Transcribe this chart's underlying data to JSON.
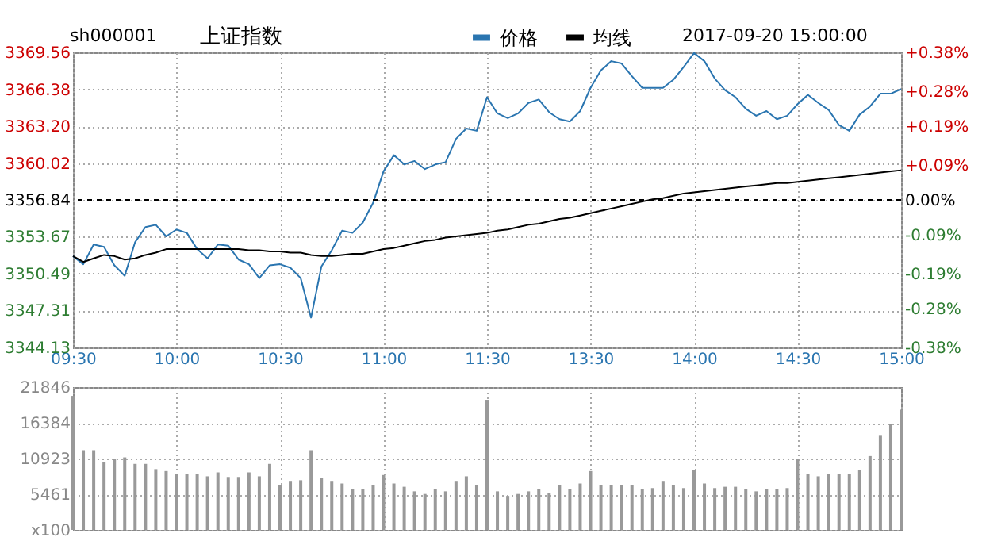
{
  "chart_data": [
    {
      "type": "line",
      "title": "上证指数",
      "annotations": [
        "sh000001",
        "2017-09-20 15:00:00"
      ],
      "legend": "top",
      "grid": true,
      "marker": "none",
      "categories": [
        "09:30",
        null,
        null,
        null,
        null,
        null,
        null,
        null,
        null,
        null,
        "10:00",
        null,
        null,
        null,
        null,
        null,
        null,
        null,
        null,
        null,
        "10:30",
        null,
        null,
        null,
        null,
        null,
        null,
        null,
        null,
        null,
        "11:00",
        null,
        null,
        null,
        null,
        null,
        null,
        null,
        null,
        null,
        "11:30",
        null,
        null,
        null,
        null,
        null,
        null,
        null,
        null,
        null,
        "13:30",
        null,
        null,
        null,
        null,
        null,
        null,
        null,
        null,
        null,
        "14:00",
        null,
        null,
        null,
        null,
        null,
        null,
        null,
        null,
        null,
        "14:30",
        null,
        null,
        null,
        null,
        null,
        null,
        null,
        null,
        null,
        "15:00"
      ],
      "series": [
        {
          "name": "价格",
          "color": "#2a75b0",
          "values": [
            3352.0,
            3351.3,
            3353.0,
            3352.8,
            3351.2,
            3350.3,
            3353.2,
            3354.5,
            3354.7,
            3353.7,
            3354.3,
            3354.0,
            3352.6,
            3351.8,
            3353.0,
            3352.9,
            3351.7,
            3351.3,
            3350.1,
            3351.2,
            3351.3,
            3351.0,
            3350.1,
            3346.7,
            3351.1,
            3352.5,
            3354.2,
            3354.0,
            3354.9,
            3356.6,
            3359.3,
            3360.7,
            3359.9,
            3360.2,
            3359.5,
            3359.9,
            3360.1,
            3362.1,
            3363.0,
            3362.8,
            3365.7,
            3364.3,
            3363.9,
            3364.3,
            3365.2,
            3365.5,
            3364.4,
            3363.8,
            3363.6,
            3364.5,
            3366.5,
            3368.0,
            3368.8,
            3368.6,
            3367.5,
            3366.5,
            3366.5,
            3366.5,
            3367.2,
            3368.3,
            3369.5,
            3368.8,
            3367.3,
            3366.3,
            3365.7,
            3364.7,
            3364.1,
            3364.5,
            3363.8,
            3364.1,
            3365.1,
            3365.9,
            3365.2,
            3364.6,
            3363.3,
            3362.8,
            3364.2,
            3364.9,
            3366.0,
            3366.0,
            3366.4
          ]
        },
        {
          "name": "均线",
          "color": "#000000",
          "values": [
            3352.0,
            3351.5,
            3351.8,
            3352.1,
            3352.0,
            3351.7,
            3351.8,
            3352.1,
            3352.3,
            3352.6,
            3352.6,
            3352.6,
            3352.6,
            3352.6,
            3352.6,
            3352.6,
            3352.6,
            3352.5,
            3352.5,
            3352.4,
            3352.4,
            3352.3,
            3352.3,
            3352.1,
            3352.0,
            3352.0,
            3352.1,
            3352.2,
            3352.2,
            3352.4,
            3352.6,
            3352.7,
            3352.9,
            3353.1,
            3353.3,
            3353.4,
            3353.6,
            3353.7,
            3353.8,
            3353.9,
            3354.0,
            3354.2,
            3354.3,
            3354.5,
            3354.7,
            3354.8,
            3355.0,
            3355.2,
            3355.3,
            3355.5,
            3355.7,
            3355.9,
            3356.1,
            3356.3,
            3356.5,
            3356.7,
            3356.9,
            3357.0,
            3357.2,
            3357.4,
            3357.5,
            3357.6,
            3357.7,
            3357.8,
            3357.9,
            3358.0,
            3358.1,
            3358.2,
            3358.3,
            3358.3,
            3358.4,
            3358.5,
            3358.6,
            3358.7,
            3358.8,
            3358.9,
            3359.0,
            3359.1,
            3359.2,
            3359.3,
            3359.4
          ]
        }
      ],
      "ylim": [
        3344.13,
        3369.56
      ],
      "yticks": [
        3344.13,
        3347.31,
        3350.49,
        3353.67,
        3356.84,
        3360.02,
        {
          "value": 3363.2,
          "label": "3363.20"
        },
        3366.38,
        3369.56
      ],
      "y2lim": [
        -0.38,
        0.38
      ],
      "y2ticks": [
        {
          "value": -0.38,
          "label": "-0.38%"
        },
        {
          "value": -0.28,
          "label": "-0.28%"
        },
        {
          "value": -0.19,
          "label": "-0.19%"
        },
        {
          "value": -0.09,
          "label": "-0.09%"
        },
        {
          "value": 0,
          "label": "0.00%"
        },
        {
          "value": 0.09,
          "label": "+0.09%"
        },
        {
          "value": 0.19,
          "label": "+0.19%"
        },
        {
          "value": 0.28,
          "label": "+0.28%"
        },
        {
          "value": 0.38,
          "label": "+0.38%"
        }
      ],
      "ref_lines": [
        {
          "axis": "y2",
          "value": 0,
          "color": "#000000",
          "line_style": "dashed"
        }
      ]
    },
    {
      "type": "bar",
      "color": "#999999",
      "grid": true,
      "tick_labels": "y",
      "categories": [
        null,
        null,
        null,
        null,
        null,
        null,
        null,
        null,
        null,
        null,
        null,
        null,
        null,
        null,
        null,
        null,
        null,
        null,
        null,
        null,
        null,
        null,
        null,
        null,
        null,
        null,
        null,
        null,
        null,
        null,
        null,
        null,
        null,
        null,
        null,
        null,
        null,
        null,
        null,
        null,
        null,
        null,
        null,
        null,
        null,
        null,
        null,
        null,
        null,
        null,
        null,
        null,
        null,
        null,
        null,
        null,
        null,
        null,
        null,
        null,
        null,
        null,
        null,
        null,
        null,
        null,
        null,
        null,
        null,
        null,
        null,
        null,
        null,
        null,
        null,
        null,
        null,
        null,
        null,
        null,
        null
      ],
      "values": [
        20500,
        12200,
        12200,
        10400,
        10800,
        11100,
        10100,
        10100,
        9300,
        9000,
        8600,
        8600,
        8600,
        8200,
        8800,
        8100,
        8100,
        8800,
        8200,
        10100,
        6800,
        7500,
        7600,
        12200,
        7900,
        7500,
        7100,
        6200,
        6200,
        6900,
        8400,
        7100,
        6600,
        5900,
        5500,
        6200,
        5900,
        7500,
        8200,
        6800,
        19900,
        5900,
        5200,
        5500,
        5900,
        6200,
        5700,
        6800,
        6200,
        7100,
        9000,
        6800,
        6900,
        6900,
        6800,
        6200,
        6400,
        7500,
        6900,
        6400,
        9100,
        7100,
        6400,
        6600,
        6600,
        6200,
        5900,
        6200,
        6200,
        6400,
        10800,
        8600,
        8200,
        8600,
        8600,
        8600,
        9100,
        11300,
        14400,
        16200,
        18400
      ],
      "ylim": [
        0,
        21846
      ],
      "yticks": [
        {
          "value": 0,
          "label": "x100"
        },
        5461,
        10923,
        16384,
        21846
      ]
    }
  ]
}
